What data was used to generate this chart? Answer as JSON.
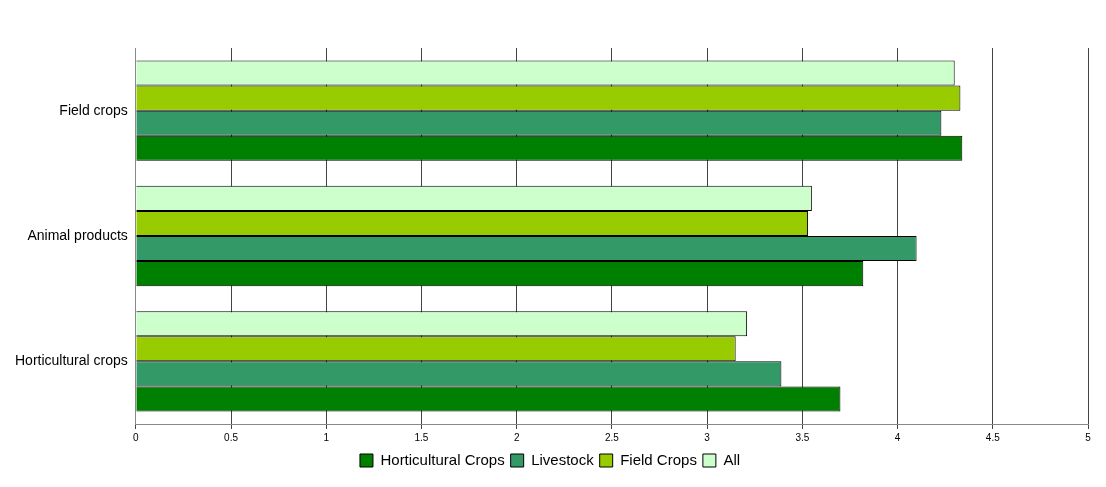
{
  "chart_data": {
    "type": "bar",
    "orientation": "horizontal",
    "categories": [
      "Field crops",
      "Animal products",
      "Horticultural crops"
    ],
    "series": [
      {
        "name": "Horticultural Crops",
        "color": "#008000",
        "values": [
          4.34,
          3.82,
          3.7
        ]
      },
      {
        "name": "Livestock",
        "color": "#339966",
        "values": [
          4.23,
          4.1,
          3.39
        ]
      },
      {
        "name": "Field Crops",
        "color": "#99cc00",
        "values": [
          4.33,
          3.53,
          3.15
        ]
      },
      {
        "name": "All",
        "color": "#ccffcc",
        "values": [
          4.3,
          3.55,
          3.21
        ]
      }
    ],
    "xlim": [
      0,
      5
    ],
    "xticks": [
      0,
      0.5,
      1,
      1.5,
      2,
      2.5,
      3,
      3.5,
      4,
      4.5,
      5
    ],
    "grid": "x",
    "legend": "bottom"
  }
}
